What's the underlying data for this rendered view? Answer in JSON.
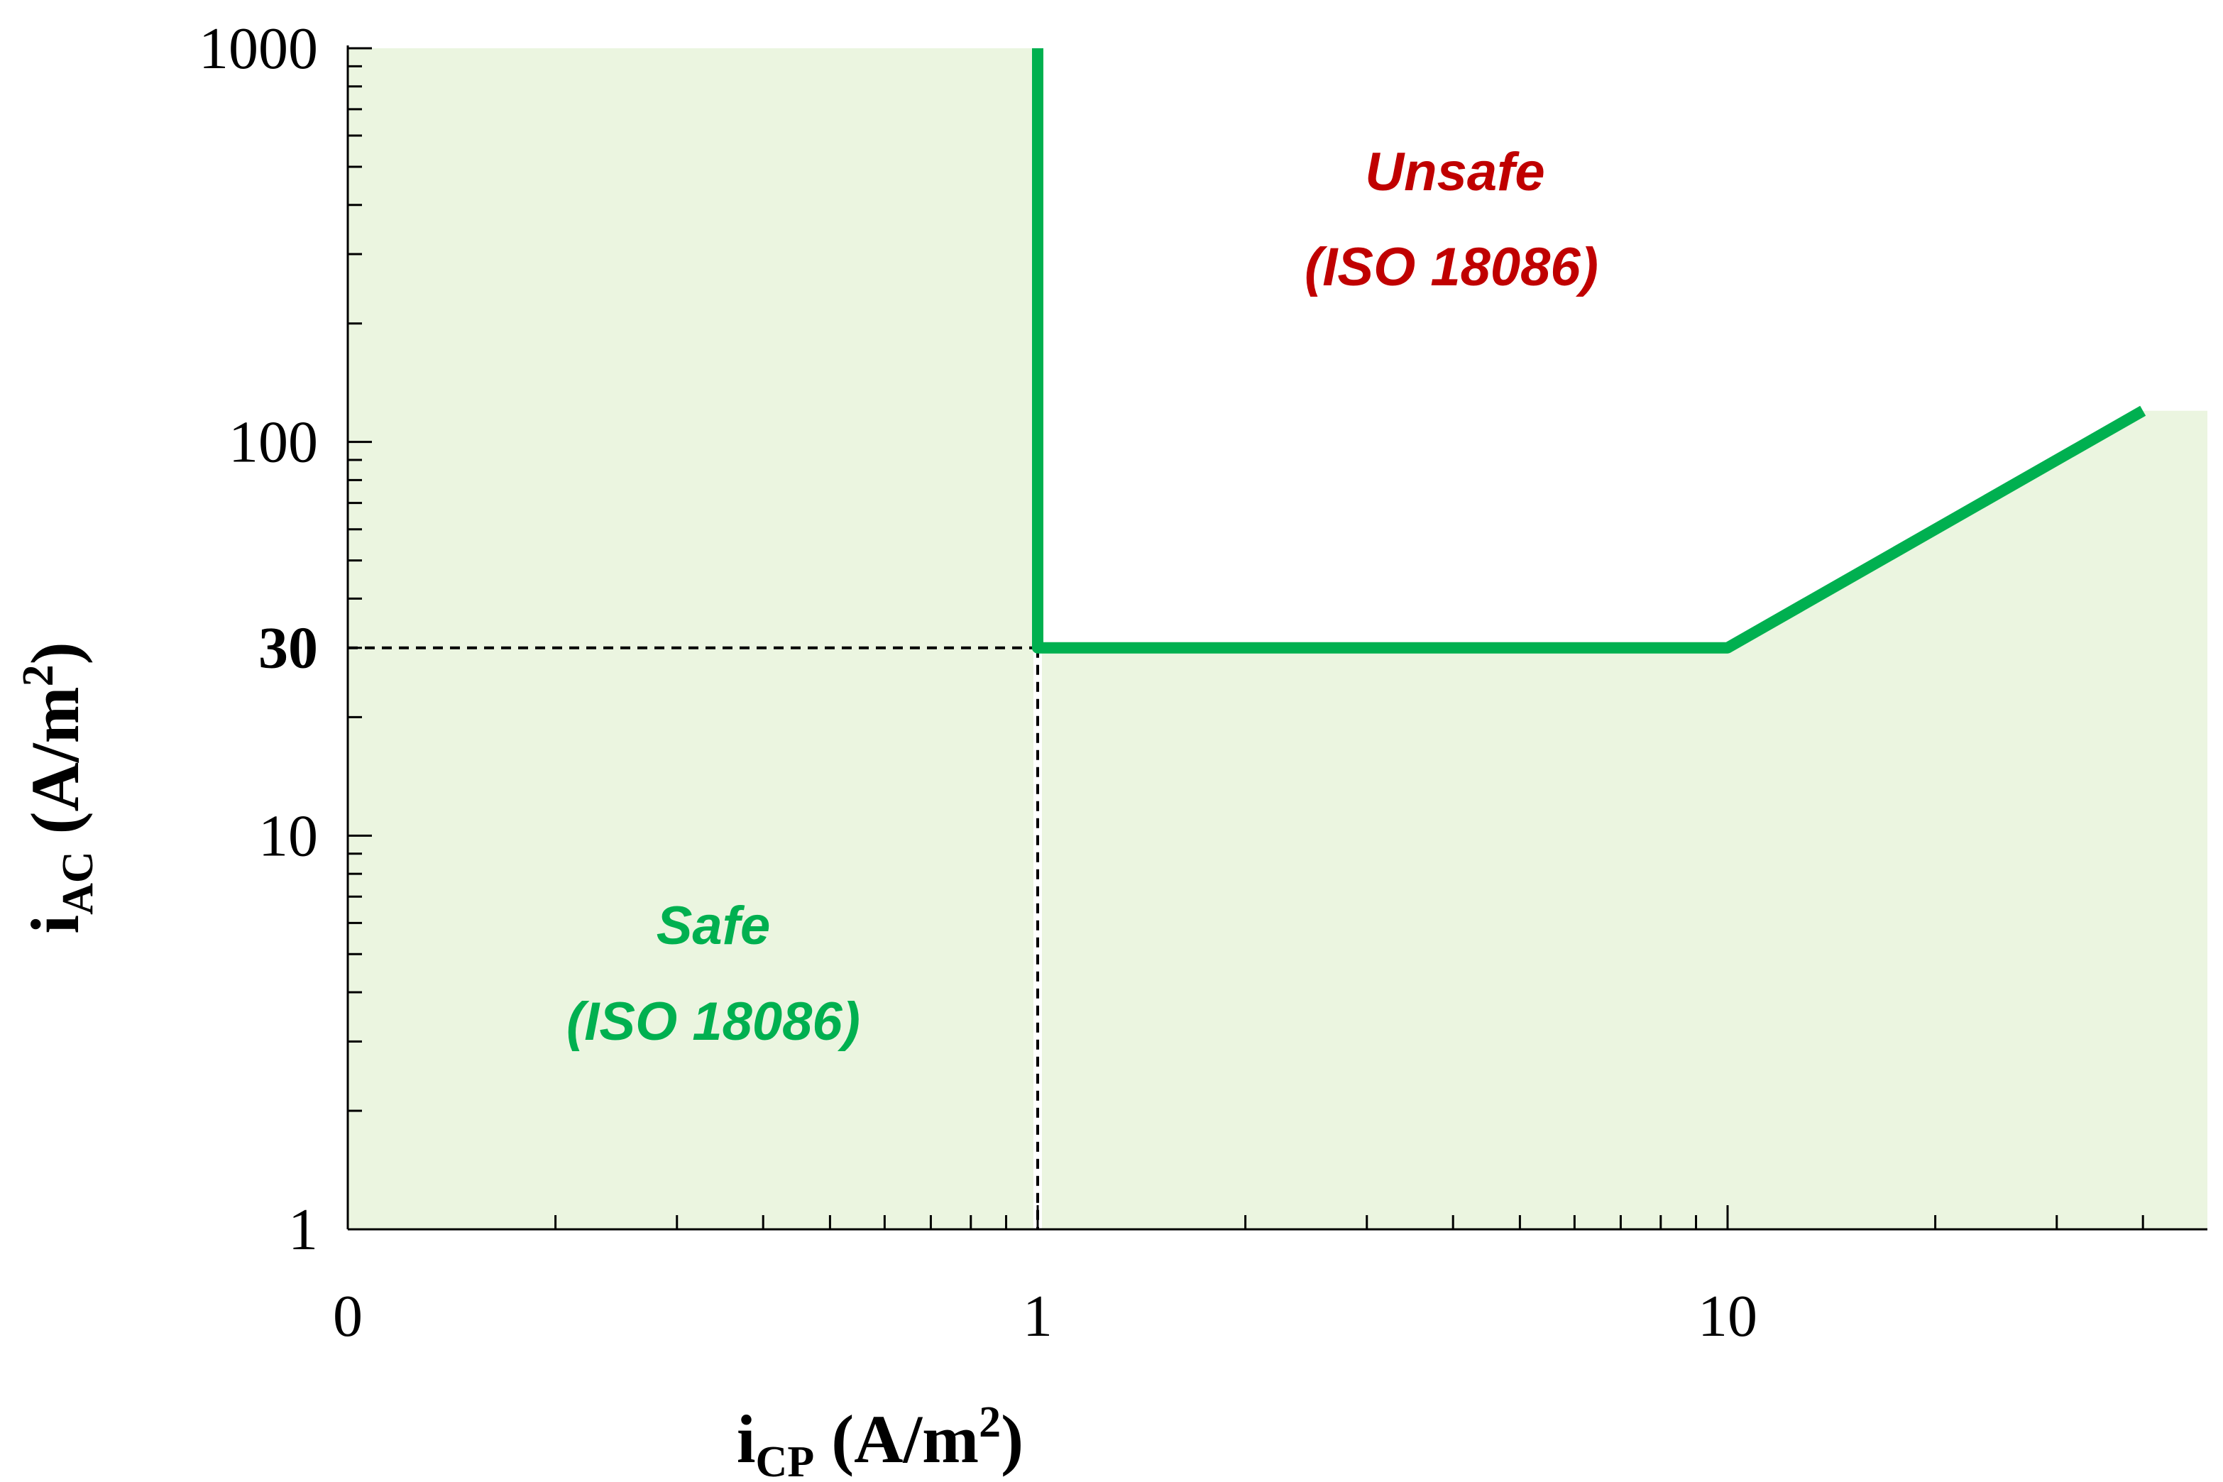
{
  "chart_data": {
    "type": "area",
    "title": "",
    "x_scale": "log (with 0 at origin)",
    "y_scale": "log",
    "xlim": [
      0,
      40
    ],
    "ylim": [
      1,
      1000
    ],
    "x_ticks": [
      {
        "value": 0,
        "label": "0"
      },
      {
        "value": 1,
        "label": "1"
      },
      {
        "value": 10,
        "label": "10"
      }
    ],
    "y_ticks": [
      {
        "value": 1,
        "label": "1",
        "bold": false
      },
      {
        "value": 10,
        "label": "10",
        "bold": false
      },
      {
        "value": 30,
        "label": "30",
        "bold": true
      },
      {
        "value": 100,
        "label": "100",
        "bold": false
      },
      {
        "value": 1000,
        "label": "1000",
        "bold": false
      }
    ],
    "xlabel": {
      "main": "i",
      "sub": "CP",
      "unit": " (A/m",
      "sup": "2",
      "close": ")"
    },
    "ylabel": {
      "main": "i",
      "sub": "AC",
      "unit": " (A/m",
      "sup": "2",
      "close": ")"
    },
    "threshold_line": {
      "points": [
        [
          1,
          1000
        ],
        [
          1,
          30
        ],
        [
          10,
          30
        ],
        [
          40,
          120
        ]
      ],
      "color": "#00b050"
    },
    "reference_lines": {
      "y": 30,
      "x": 1,
      "style": "dashed",
      "color": "#000000"
    },
    "safe_region": {
      "fill": "#ebf5e0"
    },
    "annotations": {
      "unsafe": {
        "line1": "Unsafe",
        "line2": "(ISO 18086)",
        "color": "#c00000"
      },
      "safe": {
        "line1": "Safe",
        "line2": "(ISO 18086)",
        "color": "#00b050"
      }
    },
    "grid": false
  }
}
